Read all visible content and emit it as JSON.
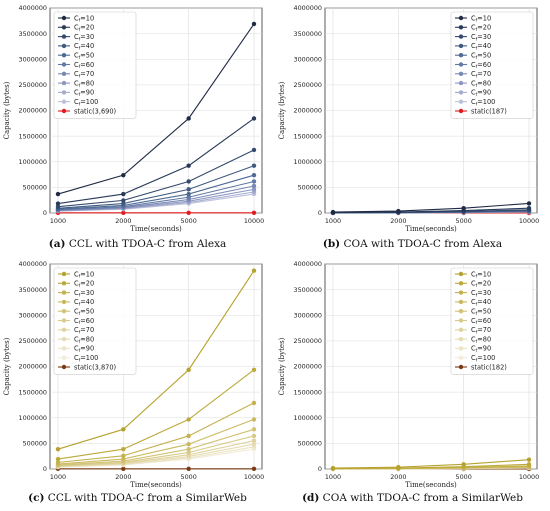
{
  "figure": {
    "captions": [
      {
        "letter": "(a)",
        "text": " CCL with TDOA-C from Alexa"
      },
      {
        "letter": "(b)",
        "text": " COA with TDOA-C from Alexa"
      },
      {
        "letter": "(c)",
        "text": " CCL with TDOA-C from a SimilarWeb"
      },
      {
        "letter": "(d)",
        "text": " COA with TDOA-C from a SimilarWeb"
      }
    ]
  },
  "chart_data": [
    {
      "type": "line",
      "xlabel": "Time(seconds)",
      "ylabel": "Capacity (bytes)",
      "categories": [
        "1000",
        "2000",
        "5000",
        "10000"
      ],
      "ylim": [
        0,
        4000000
      ],
      "yticks": [
        "0",
        "500000",
        "1000000",
        "1500000",
        "2000000",
        "2500000",
        "3000000",
        "3500000",
        "4000000"
      ],
      "grid": true,
      "legend_position": "top-left",
      "palette": [
        "#1f2a44",
        "#2a3a5a",
        "#344a6e",
        "#405a82",
        "#4f6a94",
        "#6179a6",
        "#7788b4",
        "#8e98c2",
        "#a6acce",
        "#bcc2dc",
        "#e41a1c"
      ],
      "series": [
        {
          "name": "C_f=10",
          "values": [
            369000,
            738000,
            1845000,
            3690000
          ]
        },
        {
          "name": "C_f=20",
          "values": [
            184500,
            369000,
            922500,
            1845000
          ]
        },
        {
          "name": "C_f=30",
          "values": [
            123000,
            246000,
            615000,
            1230000
          ]
        },
        {
          "name": "C_f=40",
          "values": [
            92250,
            184500,
            461250,
            922500
          ]
        },
        {
          "name": "C_f=50",
          "values": [
            73800,
            147600,
            369000,
            738000
          ]
        },
        {
          "name": "C_f=60",
          "values": [
            61500,
            123000,
            307500,
            615000
          ]
        },
        {
          "name": "C_f=70",
          "values": [
            52700,
            105400,
            263600,
            527100
          ]
        },
        {
          "name": "C_f=80",
          "values": [
            46100,
            92250,
            230600,
            461250
          ]
        },
        {
          "name": "C_f=90",
          "values": [
            41000,
            82000,
            205000,
            410000
          ]
        },
        {
          "name": "C_f=100",
          "values": [
            36900,
            73800,
            184500,
            369000
          ]
        },
        {
          "name": "static(3,690)",
          "values": [
            3690,
            3690,
            3690,
            3690
          ]
        }
      ]
    },
    {
      "type": "line",
      "xlabel": "Time(seconds)",
      "ylabel": "Capacity (bytes)",
      "categories": [
        "1000",
        "2000",
        "5000",
        "10000"
      ],
      "ylim": [
        0,
        4000000
      ],
      "yticks": [
        "0",
        "500000",
        "1000000",
        "1500000",
        "2000000",
        "2500000",
        "3000000",
        "3500000",
        "4000000"
      ],
      "grid": true,
      "legend_position": "top-right",
      "palette": [
        "#1f2a44",
        "#2a3a5a",
        "#344a6e",
        "#405a82",
        "#4f6a94",
        "#6179a6",
        "#7788b4",
        "#8e98c2",
        "#a6acce",
        "#bcc2dc",
        "#e41a1c"
      ],
      "series": [
        {
          "name": "C_f=10",
          "values": [
            18700,
            37400,
            93500,
            187000
          ]
        },
        {
          "name": "C_f=20",
          "values": [
            9350,
            18700,
            46750,
            93500
          ]
        },
        {
          "name": "C_f=30",
          "values": [
            6230,
            12470,
            31170,
            62330
          ]
        },
        {
          "name": "C_f=40",
          "values": [
            4680,
            9350,
            23380,
            46750
          ]
        },
        {
          "name": "C_f=50",
          "values": [
            3740,
            7480,
            18700,
            37400
          ]
        },
        {
          "name": "C_f=60",
          "values": [
            3120,
            6230,
            15580,
            31170
          ]
        },
        {
          "name": "C_f=70",
          "values": [
            2670,
            5340,
            13360,
            26710
          ]
        },
        {
          "name": "C_f=80",
          "values": [
            2340,
            4680,
            11690,
            23380
          ]
        },
        {
          "name": "C_f=90",
          "values": [
            2080,
            4160,
            10390,
            20780
          ]
        },
        {
          "name": "C_f=100",
          "values": [
            1870,
            3740,
            9350,
            18700
          ]
        },
        {
          "name": "static(187)",
          "values": [
            187,
            187,
            187,
            187
          ]
        }
      ]
    },
    {
      "type": "line",
      "xlabel": "Time(seconds)",
      "ylabel": "Capacity (bytes)",
      "categories": [
        "1000",
        "2000",
        "5000",
        "10000"
      ],
      "ylim": [
        0,
        4000000
      ],
      "yticks": [
        "0",
        "500000",
        "1000000",
        "1500000",
        "2000000",
        "2500000",
        "3000000",
        "3500000",
        "4000000"
      ],
      "grid": true,
      "legend_position": "top-left",
      "palette": [
        "#b5a22e",
        "#bda93a",
        "#c4b04c",
        "#cab95f",
        "#d1c274",
        "#d8cb89",
        "#dfd49f",
        "#e5dcb3",
        "#ebe4c6",
        "#f2ecd9",
        "#7a3b14"
      ],
      "series": [
        {
          "name": "C_f=10",
          "values": [
            387000,
            774000,
            1935000,
            3870000
          ]
        },
        {
          "name": "C_f=20",
          "values": [
            193500,
            387000,
            967500,
            1935000
          ]
        },
        {
          "name": "C_f=30",
          "values": [
            129000,
            258000,
            645000,
            1290000
          ]
        },
        {
          "name": "C_f=40",
          "values": [
            96750,
            193500,
            483750,
            967500
          ]
        },
        {
          "name": "C_f=50",
          "values": [
            77400,
            154800,
            387000,
            774000
          ]
        },
        {
          "name": "C_f=60",
          "values": [
            64500,
            129000,
            322500,
            645000
          ]
        },
        {
          "name": "C_f=70",
          "values": [
            55300,
            110600,
            276400,
            552900
          ]
        },
        {
          "name": "C_f=80",
          "values": [
            48400,
            96750,
            241900,
            483750
          ]
        },
        {
          "name": "C_f=90",
          "values": [
            43000,
            86000,
            215000,
            430000
          ]
        },
        {
          "name": "C_f=100",
          "values": [
            38700,
            77400,
            193500,
            387000
          ]
        },
        {
          "name": "static(3,870)",
          "values": [
            3870,
            3870,
            3870,
            3870
          ]
        }
      ]
    },
    {
      "type": "line",
      "xlabel": "Time(seconds)",
      "ylabel": "Capacity (bytes)",
      "categories": [
        "1000",
        "2000",
        "5000",
        "10000"
      ],
      "ylim": [
        0,
        4000000
      ],
      "yticks": [
        "0",
        "500000",
        "1000000",
        "1500000",
        "2000000",
        "2500000",
        "3000000",
        "3500000",
        "4000000"
      ],
      "grid": true,
      "legend_position": "top-right",
      "palette": [
        "#b5a22e",
        "#bda93a",
        "#c4b04c",
        "#cab95f",
        "#d1c274",
        "#d8cb89",
        "#dfd49f",
        "#e5dcb3",
        "#ebe4c6",
        "#f2ecd9",
        "#7a3b14"
      ],
      "series": [
        {
          "name": "C_f=10",
          "values": [
            18200,
            36400,
            91000,
            182000
          ]
        },
        {
          "name": "C_f=20",
          "values": [
            9100,
            18200,
            45500,
            91000
          ]
        },
        {
          "name": "C_f=30",
          "values": [
            6070,
            12130,
            30330,
            60670
          ]
        },
        {
          "name": "C_f=40",
          "values": [
            4550,
            9100,
            22750,
            45500
          ]
        },
        {
          "name": "C_f=50",
          "values": [
            3640,
            7280,
            18200,
            36400
          ]
        },
        {
          "name": "C_f=60",
          "values": [
            3030,
            6070,
            15170,
            30330
          ]
        },
        {
          "name": "C_f=70",
          "values": [
            2600,
            5200,
            13000,
            26000
          ]
        },
        {
          "name": "C_f=80",
          "values": [
            2280,
            4550,
            11380,
            22750
          ]
        },
        {
          "name": "C_f=90",
          "values": [
            2020,
            4040,
            10110,
            20220
          ]
        },
        {
          "name": "C_f=100",
          "values": [
            1820,
            3640,
            9100,
            18200
          ]
        },
        {
          "name": "static(182)",
          "values": [
            182,
            182,
            182,
            182
          ]
        }
      ]
    }
  ]
}
